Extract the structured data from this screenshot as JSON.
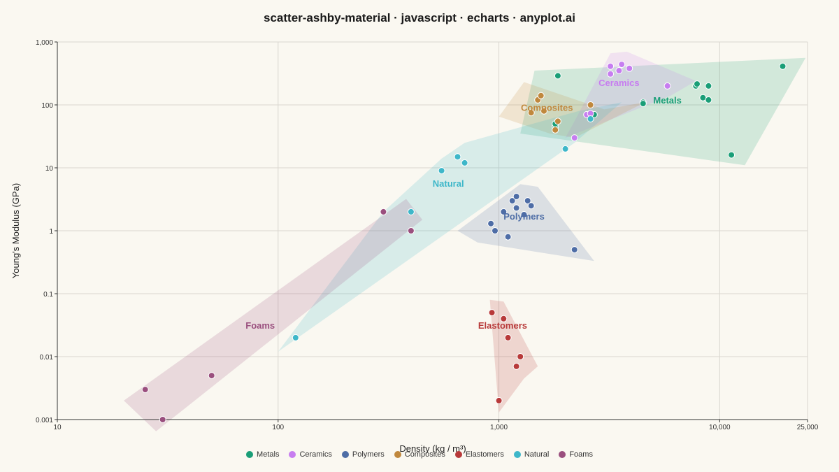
{
  "chart_data": {
    "type": "scatter",
    "title": "scatter-ashby-material · javascript · echarts · anyplot.ai",
    "xlabel": "Density  (kg / m³)",
    "ylabel": "Young's Modulus  (GPa)",
    "xscale": "log",
    "yscale": "log",
    "xlim": [
      10,
      25000
    ],
    "ylim": [
      0.001,
      1000
    ],
    "x_ticks": [
      "10",
      "100",
      "1,000",
      "10,000",
      "25,000"
    ],
    "y_ticks": [
      "0.001",
      "0.01",
      "0.1",
      "1",
      "10",
      "100",
      "1,000"
    ],
    "grid": true,
    "legend_position": "bottom",
    "series": [
      {
        "name": "Metals",
        "color": "#1A9E77",
        "points": [
          [
            1800,
            45
          ],
          [
            1850,
            290
          ],
          [
            1800,
            50
          ],
          [
            2700,
            70
          ],
          [
            4500,
            110
          ],
          [
            4500,
            105
          ],
          [
            7800,
            200
          ],
          [
            7900,
            215
          ],
          [
            8400,
            130
          ],
          [
            8900,
            120
          ],
          [
            8900,
            200
          ],
          [
            11300,
            16
          ],
          [
            19300,
            410
          ]
        ]
      },
      {
        "name": "Ceramics",
        "color": "#C77DF0",
        "points": [
          [
            2200,
            30
          ],
          [
            2500,
            70
          ],
          [
            2600,
            73
          ],
          [
            3200,
            310
          ],
          [
            3200,
            410
          ],
          [
            3500,
            350
          ],
          [
            3600,
            440
          ],
          [
            3900,
            380
          ],
          [
            5800,
            200
          ]
        ]
      },
      {
        "name": "Polymers",
        "color": "#4E6DA6",
        "points": [
          [
            920,
            1.3
          ],
          [
            960,
            1.0
          ],
          [
            1050,
            2.0
          ],
          [
            1100,
            0.8
          ],
          [
            1150,
            3.0
          ],
          [
            1200,
            2.3
          ],
          [
            1200,
            3.5
          ],
          [
            1300,
            1.8
          ],
          [
            1350,
            3.0
          ],
          [
            1400,
            2.5
          ],
          [
            2200,
            0.5
          ]
        ]
      },
      {
        "name": "Composites",
        "color": "#C0883D",
        "points": [
          [
            1400,
            75
          ],
          [
            1500,
            120
          ],
          [
            1550,
            140
          ],
          [
            1600,
            80
          ],
          [
            1800,
            40
          ],
          [
            1850,
            55
          ],
          [
            2600,
            100
          ]
        ]
      },
      {
        "name": "Elastomers",
        "color": "#B83A3A",
        "points": [
          [
            930,
            0.05
          ],
          [
            1000,
            0.002
          ],
          [
            1050,
            0.04
          ],
          [
            1100,
            0.02
          ],
          [
            1200,
            0.007
          ],
          [
            1250,
            0.01
          ]
        ]
      },
      {
        "name": "Natural",
        "color": "#3EB7C9",
        "points": [
          [
            120,
            0.02
          ],
          [
            400,
            2.0
          ],
          [
            550,
            9.0
          ],
          [
            650,
            15.0
          ],
          [
            700,
            12.0
          ],
          [
            2000,
            20.0
          ],
          [
            2600,
            60
          ]
        ]
      },
      {
        "name": "Foams",
        "color": "#9A4F7E",
        "points": [
          [
            25,
            0.003
          ],
          [
            30,
            0.001
          ],
          [
            50,
            0.005
          ],
          [
            300,
            2.0
          ],
          [
            400,
            1.0
          ]
        ]
      }
    ],
    "regions": [
      {
        "series": "Metals",
        "label": "Metals",
        "label_at": [
          5800,
          105
        ],
        "hull": [
          [
            1450,
            350
          ],
          [
            24500,
            560
          ],
          [
            13000,
            11
          ],
          [
            1250,
            35
          ]
        ]
      },
      {
        "series": "Ceramics",
        "label": "Ceramics",
        "label_at": [
          3500,
          200
        ],
        "hull": [
          [
            3200,
            660
          ],
          [
            3800,
            700
          ],
          [
            7800,
            240
          ],
          [
            6000,
            140
          ],
          [
            2000,
            30
          ],
          [
            2200,
            55
          ]
        ]
      },
      {
        "series": "Composites",
        "label": "Composites",
        "label_at": [
          1650,
          80
        ],
        "hull": [
          [
            1300,
            230
          ],
          [
            3000,
            85
          ],
          [
            4600,
            110
          ],
          [
            2200,
            30
          ],
          [
            1700,
            35
          ],
          [
            1000,
            65
          ]
        ]
      },
      {
        "series": "Natural",
        "label": "Natural",
        "label_at": [
          590,
          5
        ],
        "hull": [
          [
            100,
            0.012
          ],
          [
            300,
            2
          ],
          [
            550,
            14
          ],
          [
            700,
            25
          ],
          [
            2300,
            80
          ],
          [
            3600,
            110
          ],
          [
            2200,
            25
          ]
        ]
      },
      {
        "series": "Polymers",
        "label": "Polymers",
        "label_at": [
          1300,
          1.5
        ],
        "hull": [
          [
            650,
            1.0
          ],
          [
            1250,
            5.5
          ],
          [
            1500,
            5
          ],
          [
            2700,
            0.33
          ],
          [
            800,
            0.65
          ]
        ]
      },
      {
        "series": "Elastomers",
        "label": "Elastomers",
        "label_at": [
          1040,
          0.028
        ],
        "hull": [
          [
            910,
            0.08
          ],
          [
            1050,
            0.075
          ],
          [
            1500,
            0.007
          ],
          [
            1300,
            0.0045
          ],
          [
            1000,
            0.0013
          ]
        ]
      },
      {
        "series": "Foams",
        "label": "Foams",
        "label_at": [
          83,
          0.028
        ],
        "hull": [
          [
            20,
            0.002
          ],
          [
            380,
            3.2
          ],
          [
            450,
            1.5
          ],
          [
            28,
            0.00065
          ]
        ]
      }
    ]
  }
}
